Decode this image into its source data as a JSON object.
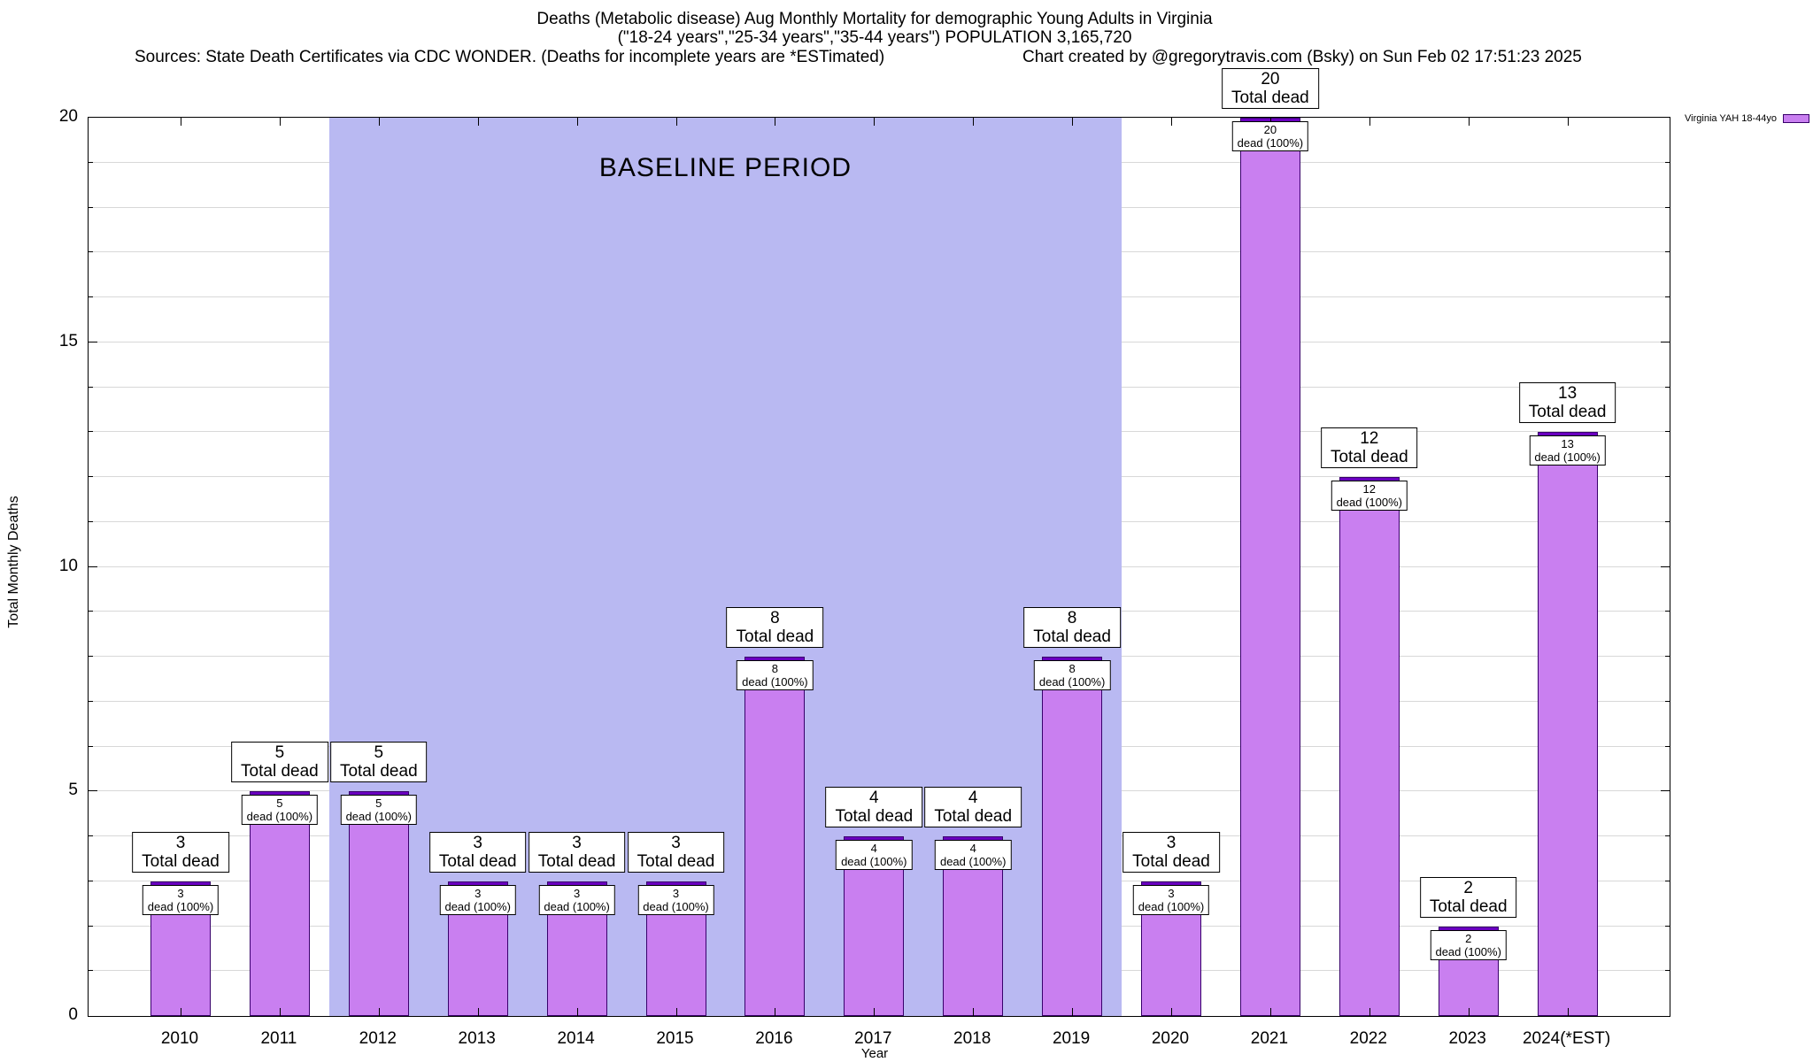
{
  "header": {
    "title_line1": "Deaths (Metabolic disease) Aug Monthly Mortality for demographic Young Adults in Virginia",
    "title_line2": "(\"18-24 years\",\"25-34 years\",\"35-44 years\") POPULATION 3,165,720",
    "sources": "Sources: State Death Certificates via CDC WONDER. (Deaths for incomplete years are *ESTimated)",
    "credit": "Chart created by @gregorytravis.com (Bsky) on Sun Feb 02 17:51:23 2025"
  },
  "chart_data": {
    "type": "bar",
    "title": "Deaths (Metabolic disease) Aug Monthly Mortality for demographic Young Adults in Virginia",
    "subtitle": "(\"18-24 years\",\"25-34 years\",\"35-44 years\") POPULATION 3,165,720",
    "categories": [
      "2010",
      "2011",
      "2012",
      "2013",
      "2014",
      "2015",
      "2016",
      "2017",
      "2018",
      "2019",
      "2020",
      "2021",
      "2022",
      "2023",
      "2024(*EST)"
    ],
    "values": [
      3,
      5,
      5,
      3,
      3,
      3,
      8,
      4,
      4,
      8,
      3,
      20,
      12,
      2,
      13
    ],
    "xlabel": "Year",
    "ylabel": "Total Monthly Deaths",
    "ylim": [
      0,
      20
    ],
    "yticks": [
      0,
      5,
      10,
      15,
      20
    ],
    "grid": "horizontal, every 1 unit",
    "legend": {
      "label": "Virginia YAH 18-44yo",
      "position": "top-right-outside"
    },
    "baseline_region": {
      "label": "BASELINE PERIOD",
      "start_category": "2012",
      "end_category": "2019"
    },
    "bar_annotations": {
      "above_suffix": "Total dead",
      "inside_suffix": "dead (100%)"
    },
    "colors": {
      "bar_fill": "#c97ff0",
      "bar_cap": "#6a00c0",
      "bar_border": "#38006b",
      "baseline_fill": "#b9b9f2",
      "gridline": "#d8d8d8"
    }
  }
}
